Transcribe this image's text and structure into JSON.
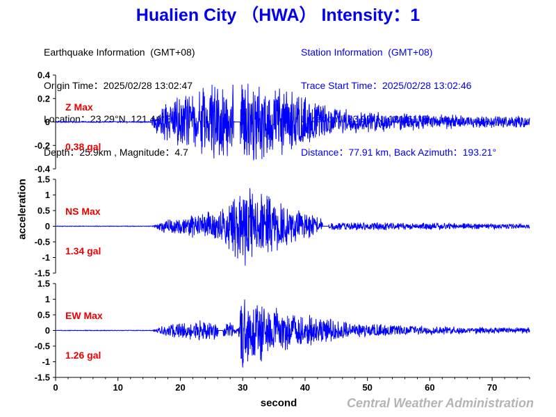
{
  "title": "Hualien City （HWA） Intensity：1",
  "earthquake": {
    "heading": "Earthquake Information  (GMT+08)",
    "origin_time": "Origin Time：2025/02/28 13:02:47",
    "location": "Location：23.29°N, 121.44°E",
    "depth_magnitude": "Depth：25.9km , Magnitude：4.7"
  },
  "station": {
    "heading": "Station Information  (GMT+08)",
    "trace_start": "Trace Start Time：2025/02/28 13:02:46",
    "location": "Location：23.98°N, 121.61°E",
    "distance": "Distance：77.91 km, Back Azimuth：193.21°"
  },
  "credit": "Central Weather Administration",
  "colors": {
    "title": "#0000ee",
    "trace": "#0000ff",
    "max_label": "#ee0000",
    "credit": "#b4b4b4"
  },
  "chart_data": {
    "type": "line",
    "xlabel": "second",
    "ylabel": "acceleration",
    "xlim": [
      0,
      76
    ],
    "x_ticks": [
      0,
      10,
      20,
      30,
      40,
      50,
      60,
      70
    ],
    "panels": [
      {
        "name": "Z Max",
        "max_value": "0.38 gal",
        "ylim": [
          -0.4,
          0.4
        ],
        "y_ticks": [
          0.4,
          0.2,
          0,
          -0.2,
          -0.4
        ],
        "envelope": [
          [
            0,
            0.005
          ],
          [
            15.3,
            0.005
          ],
          [
            15.8,
            0.08
          ],
          [
            17,
            0.15
          ],
          [
            20,
            0.24
          ],
          [
            23,
            0.28
          ],
          [
            25,
            0.34
          ],
          [
            26.5,
            0.36
          ],
          [
            28,
            0.33
          ],
          [
            30,
            0.32
          ],
          [
            31.5,
            0.36
          ],
          [
            33,
            0.37
          ],
          [
            35,
            0.33
          ],
          [
            38,
            0.26
          ],
          [
            41,
            0.2
          ],
          [
            44,
            0.14
          ],
          [
            48,
            0.1
          ],
          [
            55,
            0.08
          ],
          [
            65,
            0.06
          ],
          [
            76,
            0.05
          ]
        ],
        "gaps": [
          [
            28.6,
            29.6
          ]
        ]
      },
      {
        "name": "NS Max",
        "max_value": "1.34 gal",
        "ylim": [
          -1.5,
          1.5
        ],
        "y_ticks": [
          1.5,
          1,
          0.5,
          0,
          -0.5,
          -1,
          -1.5
        ],
        "envelope": [
          [
            0,
            0.01
          ],
          [
            15.5,
            0.01
          ],
          [
            17,
            0.2
          ],
          [
            20,
            0.3
          ],
          [
            23,
            0.45
          ],
          [
            26,
            0.6
          ],
          [
            28,
            0.85
          ],
          [
            29.5,
            1.2
          ],
          [
            30.5,
            1.34
          ],
          [
            32,
            1.1
          ],
          [
            34,
            1.2
          ],
          [
            35,
            1.0
          ],
          [
            37,
            0.7
          ],
          [
            40,
            0.5
          ],
          [
            42.5,
            0.3
          ],
          [
            43,
            0.03
          ],
          [
            44,
            0.12
          ],
          [
            48,
            0.15
          ],
          [
            55,
            0.12
          ],
          [
            65,
            0.1
          ],
          [
            76,
            0.08
          ]
        ],
        "gaps": [
          [
            42.8,
            43.8
          ]
        ]
      },
      {
        "name": "EW Max",
        "max_value": "1.26 gal",
        "ylim": [
          -1.5,
          1.5
        ],
        "y_ticks": [
          1.5,
          1,
          0.5,
          0,
          -0.5,
          -1,
          -1.5
        ],
        "envelope": [
          [
            0,
            0.01
          ],
          [
            15.5,
            0.01
          ],
          [
            17,
            0.15
          ],
          [
            20,
            0.3
          ],
          [
            23,
            0.35
          ],
          [
            26,
            0.3
          ],
          [
            27,
            0.2
          ],
          [
            28,
            0.3
          ],
          [
            29.3,
            0.05
          ],
          [
            29.8,
            1.26
          ],
          [
            31,
            1.1
          ],
          [
            33,
            1.1
          ],
          [
            35,
            0.8
          ],
          [
            38,
            0.6
          ],
          [
            42,
            0.45
          ],
          [
            45,
            0.35
          ],
          [
            48,
            0.25
          ],
          [
            55,
            0.18
          ],
          [
            65,
            0.12
          ],
          [
            76,
            0.1
          ]
        ],
        "gaps": [
          [
            26.1,
            26.8
          ]
        ]
      }
    ]
  }
}
